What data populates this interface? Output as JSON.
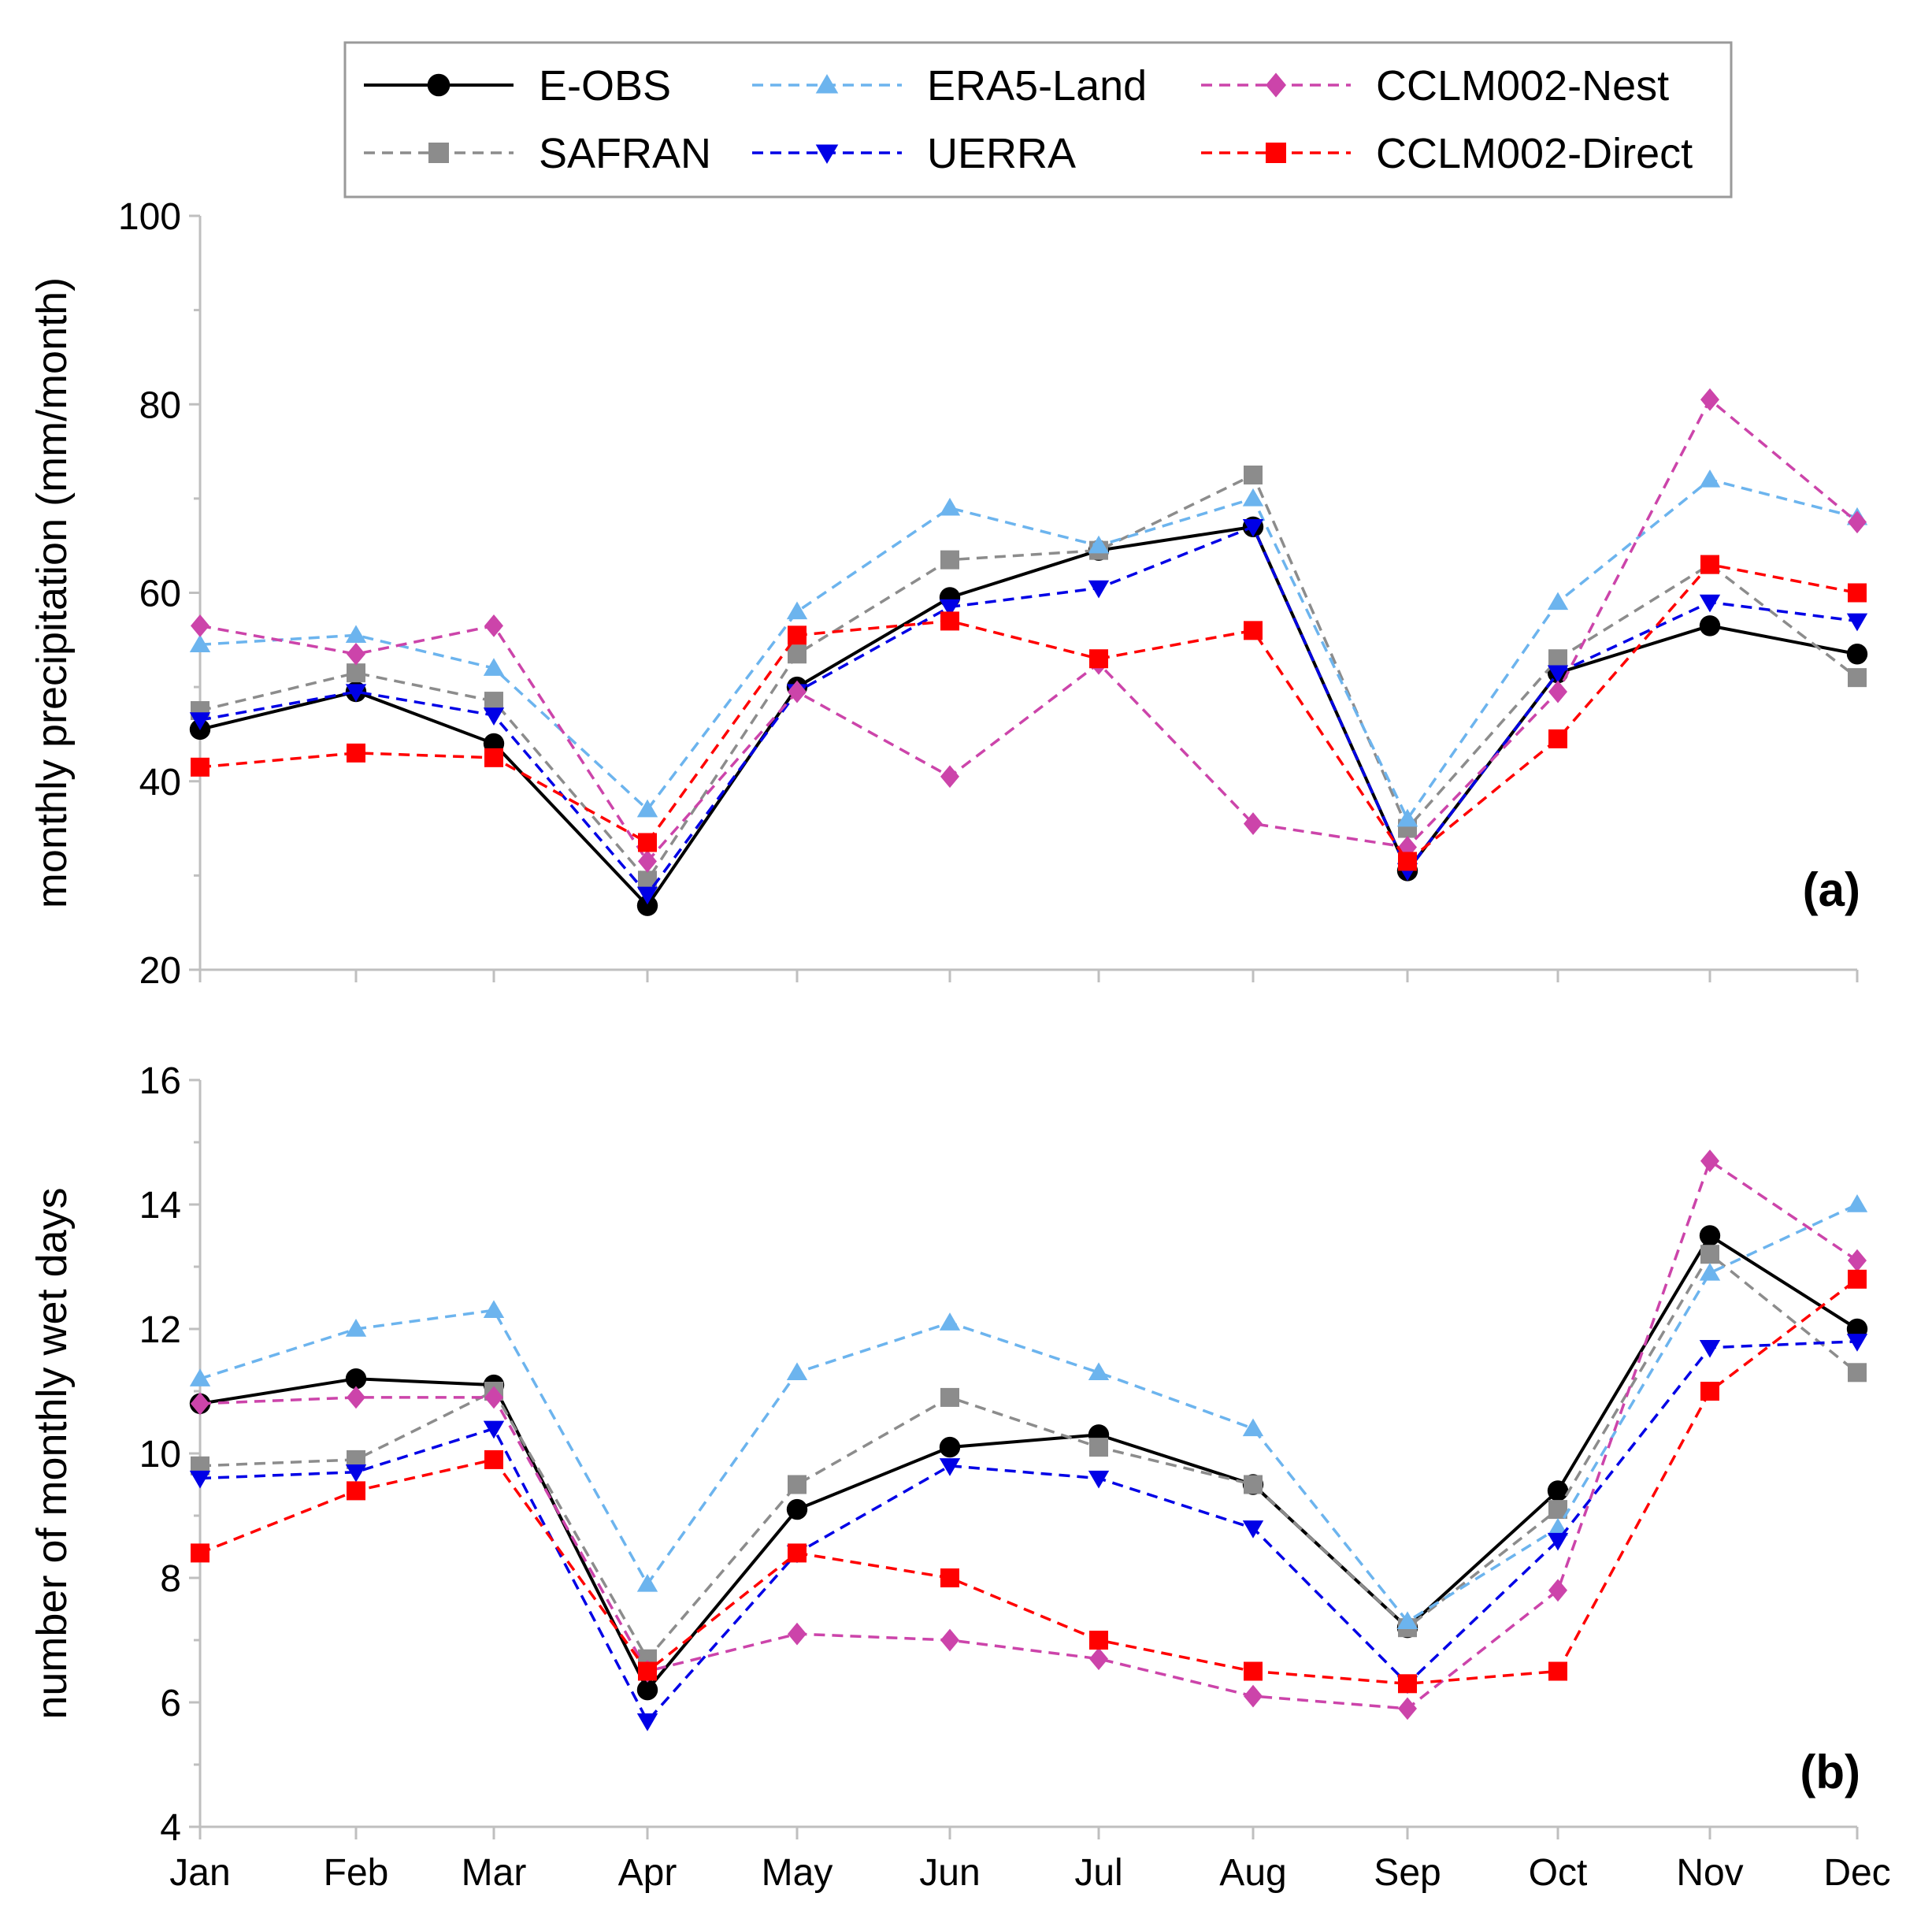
{
  "legend": [
    {
      "key": "eobs",
      "label": "E-OBS"
    },
    {
      "key": "era5",
      "label": "ERA5-Land"
    },
    {
      "key": "cclm_nest",
      "label": "CCLM002-Nest"
    },
    {
      "key": "safran",
      "label": "SAFRAN"
    },
    {
      "key": "uerra",
      "label": "UERRA"
    },
    {
      "key": "cclm_direct",
      "label": "CCLM002-Direct"
    }
  ],
  "styles": {
    "eobs": {
      "color": "#000000",
      "dash": "solid",
      "marker": "circle"
    },
    "safran": {
      "color": "#8c8c8c",
      "dash": "dashed",
      "marker": "square"
    },
    "era5": {
      "color": "#6cb4ee",
      "dash": "dashed",
      "marker": "triangle-up"
    },
    "uerra": {
      "color": "#0000e6",
      "dash": "dashed",
      "marker": "triangle-down"
    },
    "cclm_nest": {
      "color": "#cc44aa",
      "dash": "dashed",
      "marker": "diamond"
    },
    "cclm_direct": {
      "color": "#ff0000",
      "dash": "dashed",
      "marker": "square"
    }
  },
  "chart_data": [
    {
      "type": "line",
      "panel": "(a)",
      "ylabel": "monthly precipitation (mm/month)",
      "xlabel": "",
      "categories": [
        "Jan",
        "Feb",
        "Mar",
        "Apr",
        "May",
        "Jun",
        "Jul",
        "Aug",
        "Sep",
        "Oct",
        "Nov",
        "Dec"
      ],
      "ylim": [
        20,
        100
      ],
      "yticks": [
        20,
        40,
        60,
        80,
        100
      ],
      "series": [
        {
          "key": "eobs",
          "name": "E-OBS",
          "values": [
            45.5,
            49.5,
            44.0,
            26.8,
            50.0,
            59.5,
            64.5,
            67.0,
            30.5,
            51.5,
            56.5,
            53.5
          ]
        },
        {
          "key": "safran",
          "name": "SAFRAN",
          "values": [
            47.5,
            51.5,
            48.5,
            29.5,
            53.5,
            63.5,
            64.5,
            72.5,
            35.0,
            53.0,
            63.0,
            51.0
          ]
        },
        {
          "key": "era5",
          "name": "ERA5-Land",
          "values": [
            54.5,
            55.5,
            52.0,
            37.0,
            58.0,
            69.0,
            65.0,
            70.0,
            36.0,
            59.0,
            72.0,
            68.0
          ]
        },
        {
          "key": "uerra",
          "name": "UERRA",
          "values": [
            46.5,
            49.5,
            47.0,
            28.0,
            49.5,
            58.5,
            60.5,
            67.0,
            30.5,
            51.5,
            59.0,
            57.0
          ]
        },
        {
          "key": "cclm_nest",
          "name": "CCLM002-Nest",
          "values": [
            56.5,
            53.5,
            56.5,
            31.5,
            49.5,
            40.5,
            52.5,
            35.5,
            33.0,
            49.5,
            80.5,
            67.5
          ]
        },
        {
          "key": "cclm_direct",
          "name": "CCLM002-Direct",
          "values": [
            41.5,
            43.0,
            42.5,
            33.5,
            55.5,
            57.0,
            53.0,
            56.0,
            31.5,
            44.5,
            63.0,
            60.0
          ]
        }
      ]
    },
    {
      "type": "line",
      "panel": "(b)",
      "ylabel": "number of monthly wet days",
      "xlabel": "",
      "categories": [
        "Jan",
        "Feb",
        "Mar",
        "Apr",
        "May",
        "Jun",
        "Jul",
        "Aug",
        "Sep",
        "Oct",
        "Nov",
        "Dec"
      ],
      "ylim": [
        4,
        16
      ],
      "yticks": [
        4,
        6,
        8,
        10,
        12,
        14,
        16
      ],
      "series": [
        {
          "key": "eobs",
          "name": "E-OBS",
          "values": [
            10.8,
            11.2,
            11.1,
            6.2,
            9.1,
            10.1,
            10.3,
            9.5,
            7.2,
            9.4,
            13.5,
            12.0
          ]
        },
        {
          "key": "safran",
          "name": "SAFRAN",
          "values": [
            9.8,
            9.9,
            11.0,
            6.7,
            9.5,
            10.9,
            10.1,
            9.5,
            7.2,
            9.1,
            13.2,
            11.3
          ]
        },
        {
          "key": "era5",
          "name": "ERA5-Land",
          "values": [
            11.2,
            12.0,
            12.3,
            7.9,
            11.3,
            12.1,
            11.3,
            10.4,
            7.3,
            8.8,
            12.9,
            14.0
          ]
        },
        {
          "key": "uerra",
          "name": "UERRA",
          "values": [
            9.6,
            9.7,
            10.4,
            5.7,
            8.4,
            9.8,
            9.6,
            8.8,
            6.3,
            8.6,
            11.7,
            11.8
          ]
        },
        {
          "key": "cclm_nest",
          "name": "CCLM002-Nest",
          "values": [
            10.8,
            10.9,
            10.9,
            6.5,
            7.1,
            7.0,
            6.7,
            6.1,
            5.9,
            7.8,
            14.7,
            13.1
          ]
        },
        {
          "key": "cclm_direct",
          "name": "CCLM002-Direct",
          "values": [
            8.4,
            9.4,
            9.9,
            6.5,
            8.4,
            8.0,
            7.0,
            6.5,
            6.3,
            6.5,
            11.0,
            12.8
          ]
        }
      ]
    }
  ]
}
